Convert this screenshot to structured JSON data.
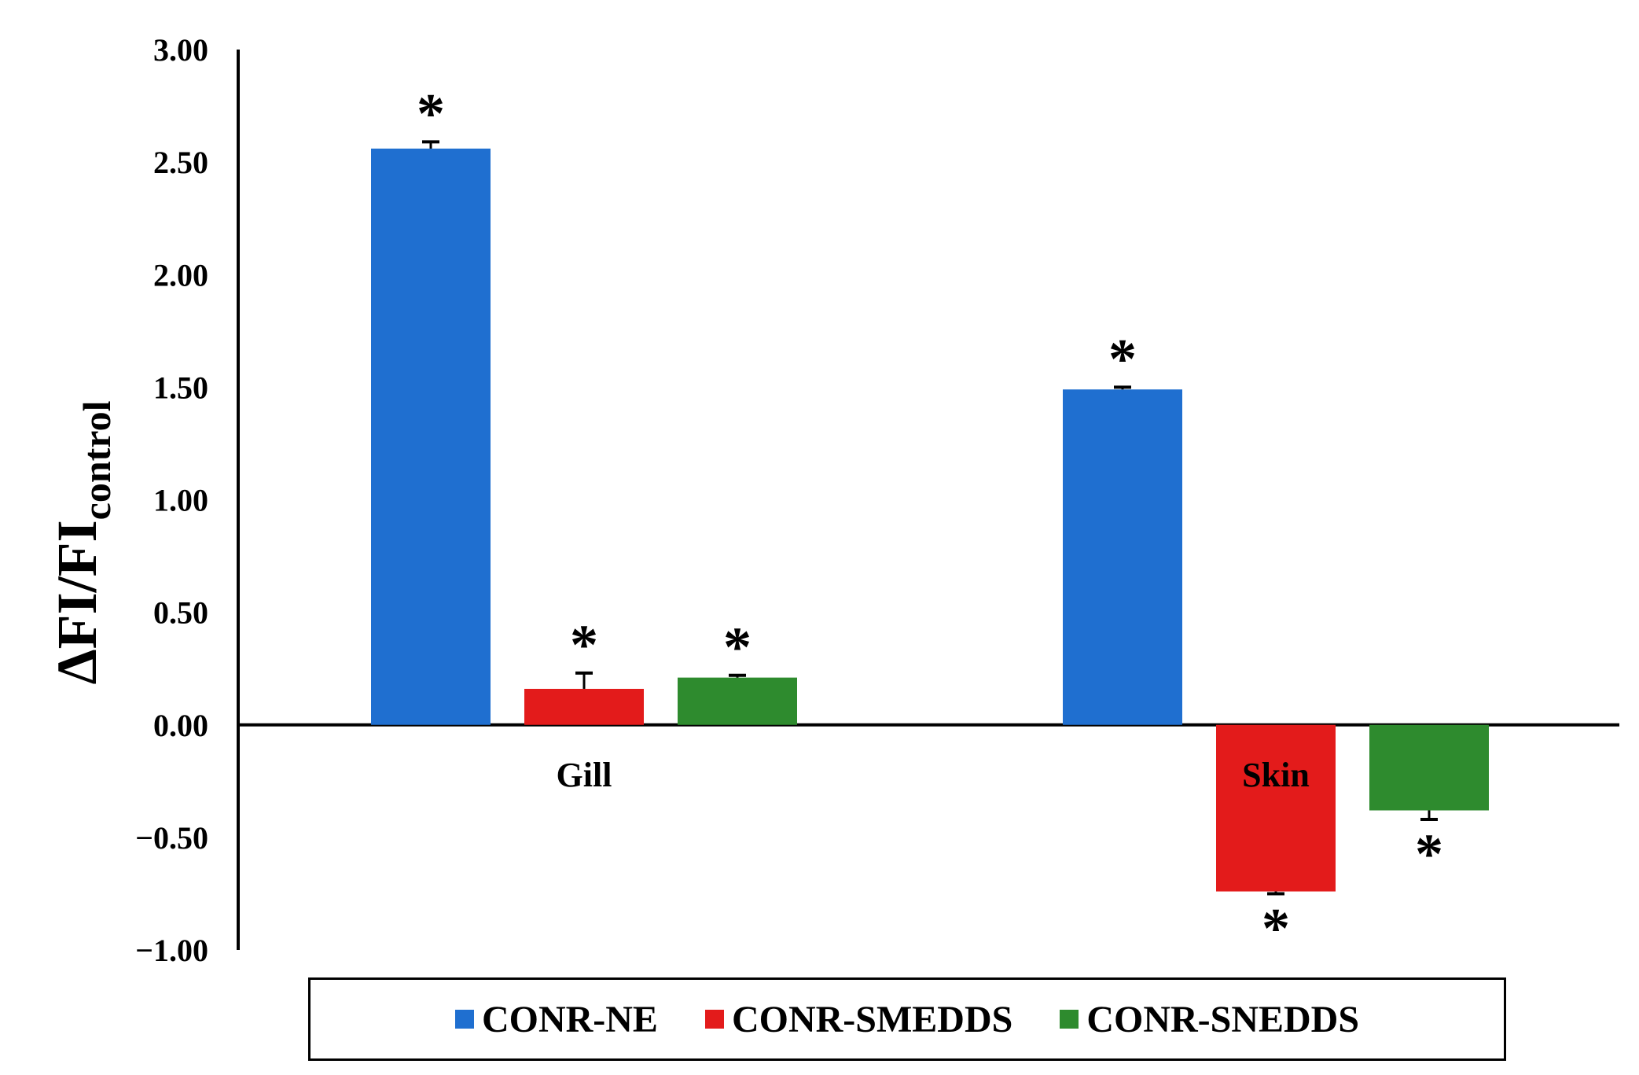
{
  "chart_data": {
    "type": "bar",
    "title": "",
    "xlabel": "",
    "ylabel": "ΔFI/FI",
    "ylabel_subscript": "control",
    "ylim": [
      -1.0,
      3.0
    ],
    "yticks": [
      -1.0,
      -0.5,
      0.0,
      0.5,
      1.0,
      1.5,
      2.0,
      2.5,
      3.0
    ],
    "ytick_labels": [
      "−1.00",
      "−0.50",
      "0.00",
      "0.50",
      "1.00",
      "1.50",
      "2.00",
      "2.50",
      "3.00"
    ],
    "categories": [
      "Gill",
      "Skin"
    ],
    "series": [
      {
        "name": "CONR-NE",
        "color": "#1f6fd0",
        "values": [
          2.56,
          1.49
        ],
        "errors": [
          0.03,
          0.01
        ],
        "significance": [
          "*",
          "*"
        ]
      },
      {
        "name": "CONR-SMEDDS",
        "color": "#e31b1b",
        "values": [
          0.16,
          -0.74
        ],
        "errors": [
          0.07,
          0.01
        ],
        "significance": [
          "*",
          "*"
        ]
      },
      {
        "name": "CONR-SNEDDS",
        "color": "#2e8b2e",
        "values": [
          0.21,
          -0.38
        ],
        "errors": [
          0.01,
          0.04
        ],
        "significance": [
          "*",
          "*"
        ]
      }
    ],
    "grid": false,
    "legend_position": "bottom"
  }
}
